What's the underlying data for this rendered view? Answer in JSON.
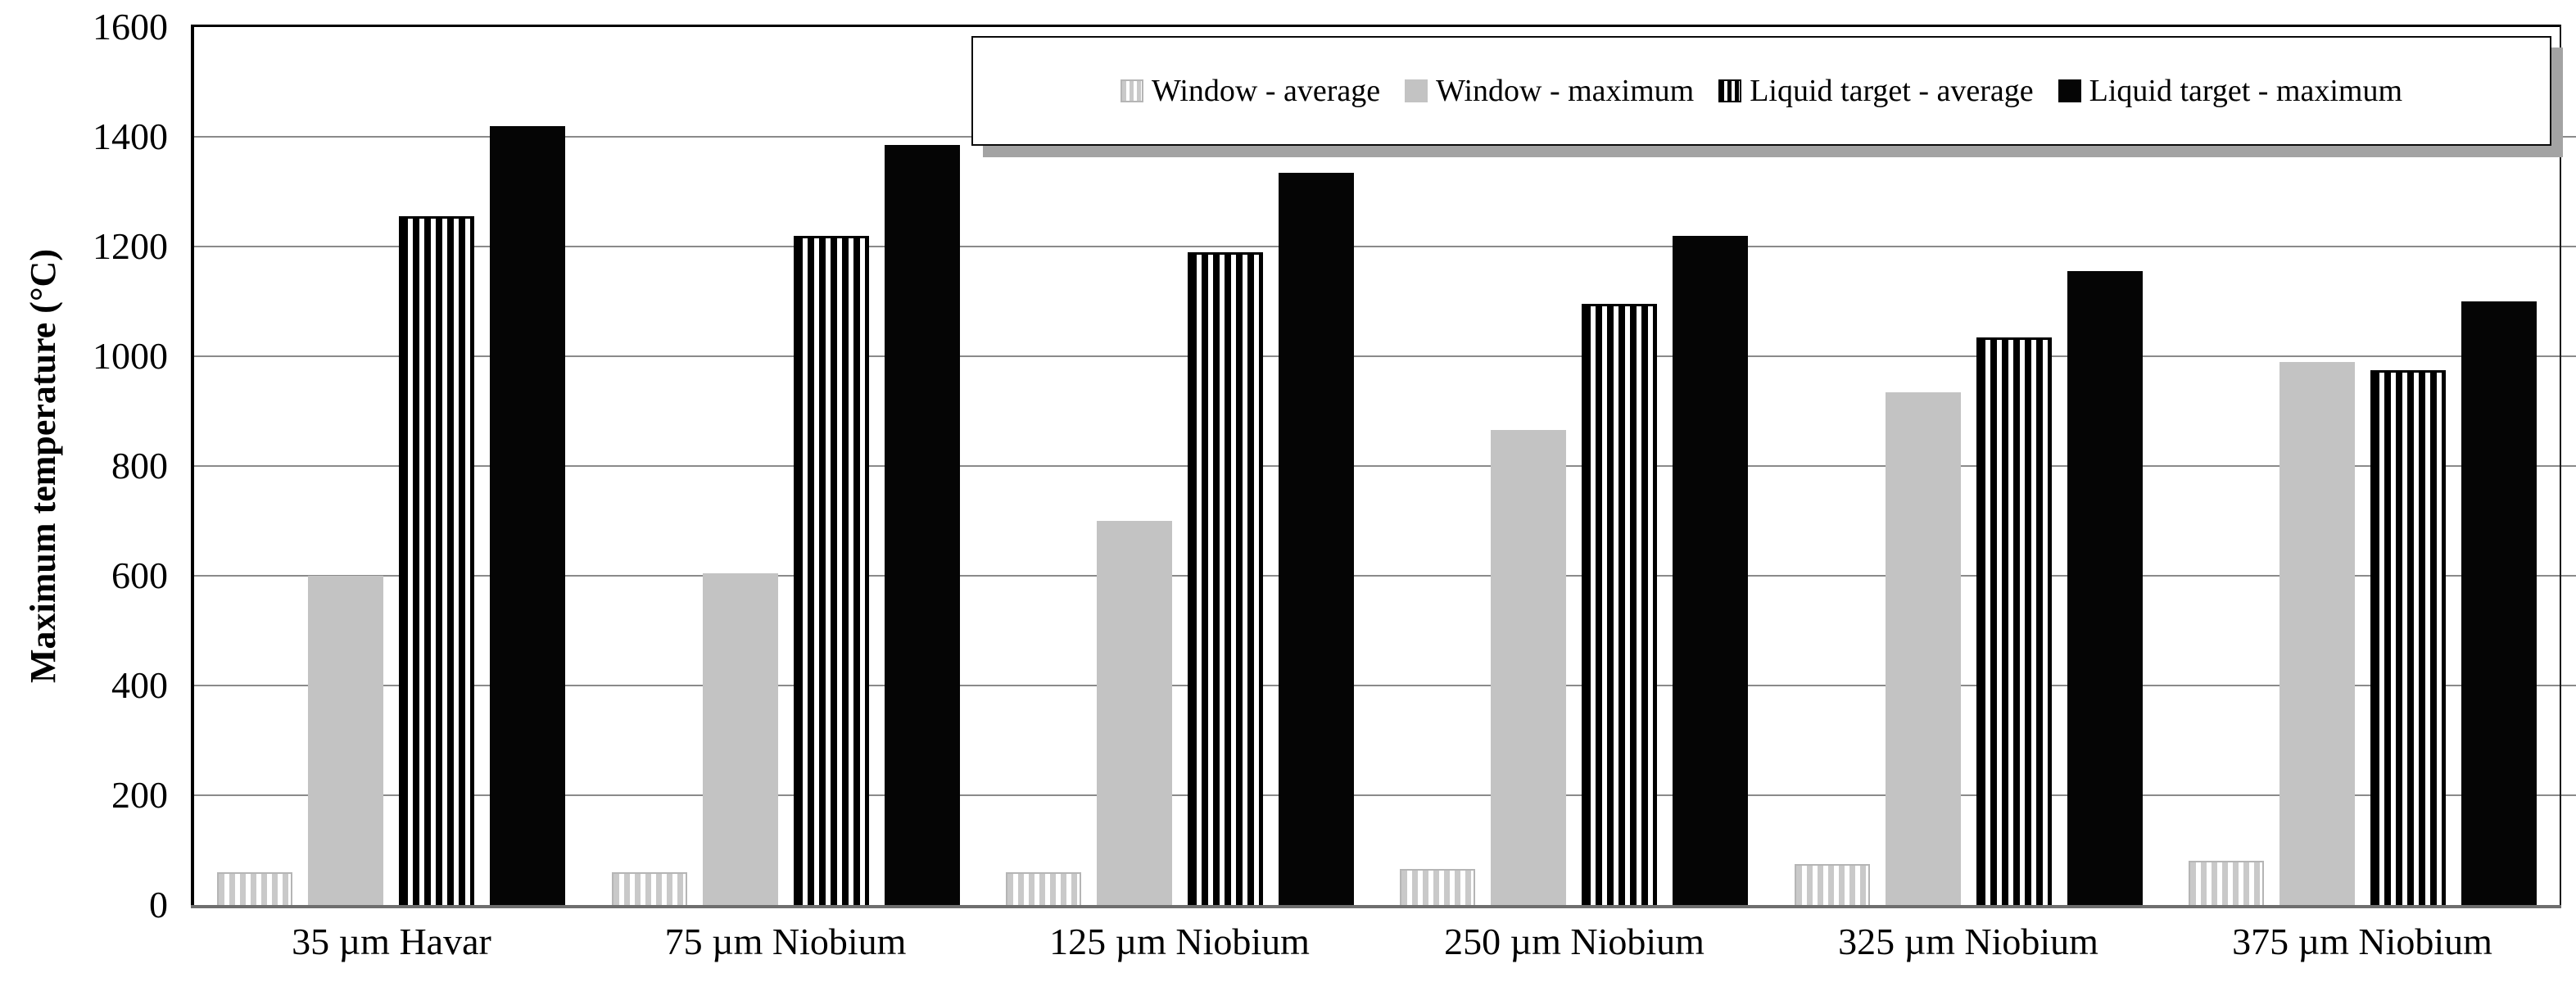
{
  "chart_data": {
    "type": "bar",
    "title": "",
    "xlabel": "",
    "ylabel": "Maximum temperature (°C)",
    "ylim": [
      0,
      1600
    ],
    "ytick_step": 200,
    "yticks": [
      0,
      200,
      400,
      600,
      800,
      1000,
      1200,
      1400,
      1600
    ],
    "grid": true,
    "legend_position": "top-right",
    "categories": [
      "35 µm Havar",
      "75 µm Niobium",
      "125 µm Niobium",
      "250 µm Niobium",
      "325 µm Niobium",
      "375 µm Niobium"
    ],
    "series": [
      {
        "name": "Window - average",
        "pattern": "light-gray-vertical-stripes",
        "color": "#c9c9c9",
        "values": [
          60,
          60,
          60,
          65,
          75,
          80
        ]
      },
      {
        "name": "Window - maximum",
        "pattern": "solid-gray",
        "color": "#c3c3c3",
        "values": [
          600,
          605,
          700,
          865,
          935,
          990
        ]
      },
      {
        "name": "Liquid target - average",
        "pattern": "black-vertical-stripes",
        "color": "#000000",
        "values": [
          1255,
          1220,
          1190,
          1095,
          1035,
          975
        ]
      },
      {
        "name": "Liquid target - maximum",
        "pattern": "solid-black",
        "color": "#050505",
        "values": [
          1420,
          1385,
          1335,
          1220,
          1155,
          1100
        ]
      }
    ],
    "colors": {
      "gridline": "#8a8a8a",
      "axis_black": "#000000",
      "axis_bottom_gray": "#6e6e6e",
      "legend_shadow": "#a3a3a3",
      "background": "#ffffff"
    }
  }
}
